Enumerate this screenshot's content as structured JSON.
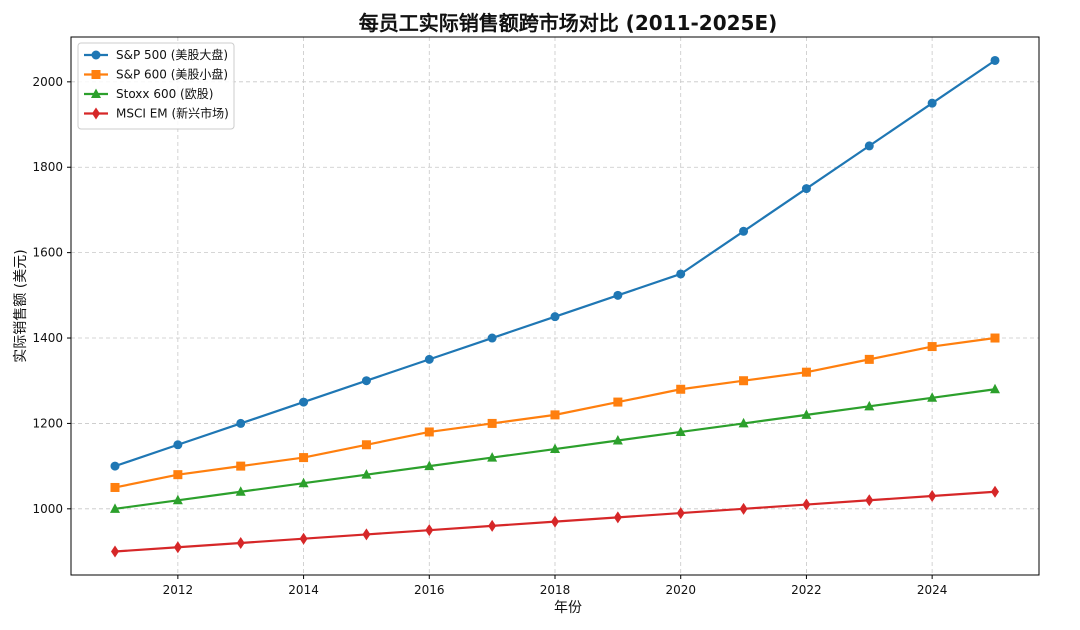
{
  "chart_data": {
    "type": "line",
    "title": "每员工实际销售额跨市场对比 (2011-2025E)",
    "xlabel": "年份",
    "ylabel": "实际销售额 (美元)",
    "x": [
      2011,
      2012,
      2013,
      2014,
      2015,
      2016,
      2017,
      2018,
      2019,
      2020,
      2021,
      2022,
      2023,
      2024,
      2025
    ],
    "xlim": [
      2010.3,
      2025.7
    ],
    "ylim": [
      845,
      2105
    ],
    "xticks": [
      2012,
      2014,
      2016,
      2018,
      2020,
      2022,
      2024
    ],
    "yticks": [
      1000,
      1200,
      1400,
      1600,
      1800,
      2000
    ],
    "grid": true,
    "legend_position": "top-left",
    "series": [
      {
        "name": "S&P 500 (美股大盘)",
        "color": "#1f77b4",
        "marker": "circle",
        "values": [
          1100,
          1150,
          1200,
          1250,
          1300,
          1350,
          1400,
          1450,
          1500,
          1550,
          1650,
          1750,
          1850,
          1950,
          2050
        ]
      },
      {
        "name": "S&P 600 (美股小盘)",
        "color": "#ff7f0e",
        "marker": "square",
        "values": [
          1050,
          1080,
          1100,
          1120,
          1150,
          1180,
          1200,
          1220,
          1250,
          1280,
          1300,
          1320,
          1350,
          1380,
          1400
        ]
      },
      {
        "name": "Stoxx 600 (欧股)",
        "color": "#2ca02c",
        "marker": "triangle",
        "values": [
          1000,
          1020,
          1040,
          1060,
          1080,
          1100,
          1120,
          1140,
          1160,
          1180,
          1200,
          1220,
          1240,
          1260,
          1280
        ]
      },
      {
        "name": "MSCI EM (新兴市场)",
        "color": "#d62728",
        "marker": "diamond",
        "values": [
          900,
          910,
          920,
          930,
          940,
          950,
          960,
          970,
          980,
          990,
          1000,
          1010,
          1020,
          1030,
          1040
        ]
      }
    ]
  }
}
